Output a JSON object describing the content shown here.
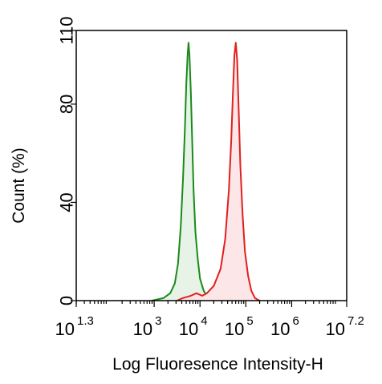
{
  "chart_data": {
    "type": "area",
    "title": "",
    "xlabel": "Log Fluoresence Intensity-H",
    "ylabel": "Count  (%)",
    "x_scale": "log",
    "xlim": [
      1.3,
      7.2
    ],
    "ylim": [
      0,
      110
    ],
    "x_ticks": [
      {
        "exp": 1.3,
        "base": "10",
        "sup": "1.3"
      },
      {
        "exp": 3,
        "base": "10",
        "sup": "3"
      },
      {
        "exp": 4,
        "base": "10",
        "sup": "4"
      },
      {
        "exp": 5,
        "base": "10",
        "sup": "5"
      },
      {
        "exp": 6,
        "base": "10",
        "sup": "6"
      },
      {
        "exp": 7.2,
        "base": "10",
        "sup": "7.2"
      }
    ],
    "y_ticks": [
      {
        "value": 0,
        "label": "0"
      },
      {
        "value": 40,
        "label": "40"
      },
      {
        "value": 80,
        "label": "80"
      },
      {
        "value": 110,
        "label": "110"
      }
    ],
    "grid": false,
    "legend": "none",
    "series": [
      {
        "color": "#1a8a1a",
        "fill": "#e6f3e6",
        "points": [
          [
            2.95,
            0
          ],
          [
            3.2,
            1
          ],
          [
            3.35,
            3
          ],
          [
            3.45,
            7
          ],
          [
            3.52,
            15
          ],
          [
            3.58,
            30
          ],
          [
            3.63,
            50
          ],
          [
            3.67,
            70
          ],
          [
            3.7,
            88
          ],
          [
            3.73,
            100
          ],
          [
            3.75,
            105
          ],
          [
            3.77,
            100
          ],
          [
            3.8,
            85
          ],
          [
            3.83,
            65
          ],
          [
            3.86,
            45
          ],
          [
            3.9,
            28
          ],
          [
            3.95,
            17
          ],
          [
            4.0,
            9
          ],
          [
            4.08,
            4
          ],
          [
            4.18,
            1
          ],
          [
            4.28,
            0
          ]
        ]
      },
      {
        "color": "#e02020",
        "fill": "#fce6e8",
        "points": [
          [
            3.5,
            0
          ],
          [
            3.62,
            1
          ],
          [
            3.8,
            2
          ],
          [
            3.92,
            3
          ],
          [
            4.05,
            2
          ],
          [
            4.15,
            3
          ],
          [
            4.3,
            6
          ],
          [
            4.45,
            13
          ],
          [
            4.55,
            25
          ],
          [
            4.63,
            45
          ],
          [
            4.68,
            65
          ],
          [
            4.72,
            85
          ],
          [
            4.75,
            100
          ],
          [
            4.78,
            105
          ],
          [
            4.81,
            98
          ],
          [
            4.84,
            80
          ],
          [
            4.88,
            55
          ],
          [
            4.93,
            35
          ],
          [
            4.98,
            20
          ],
          [
            5.05,
            10
          ],
          [
            5.12,
            4
          ],
          [
            5.2,
            1
          ],
          [
            5.3,
            0
          ]
        ]
      }
    ]
  }
}
